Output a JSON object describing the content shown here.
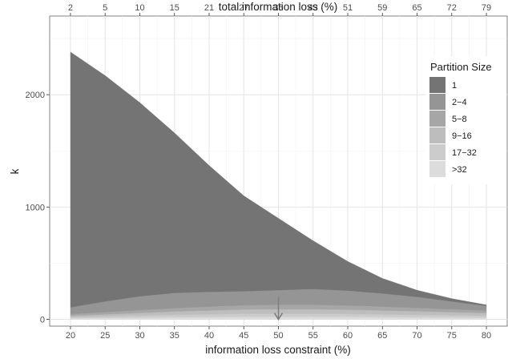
{
  "chart_data": {
    "type": "area",
    "stacked": true,
    "xlabel": "information loss constraint (%)",
    "ylabel": "k",
    "x2label": "total information loss (%)",
    "xlim": [
      17,
      83
    ],
    "ylim": [
      -60,
      2700
    ],
    "x_ticks": [
      20,
      25,
      30,
      35,
      40,
      45,
      50,
      55,
      60,
      65,
      70,
      75,
      80
    ],
    "x_tick_labels": [
      "20",
      "25",
      "30",
      "35",
      "40",
      "45",
      "50",
      "55",
      "60",
      "65",
      "70",
      "75",
      "80"
    ],
    "y_ticks": [
      0,
      1000,
      2000
    ],
    "y_tick_labels": [
      "0",
      "1000",
      "2000"
    ],
    "top_tick_labels": [
      "2",
      "5",
      "10",
      "15",
      "21",
      "27",
      "35",
      "43",
      "51",
      "59",
      "65",
      "72",
      "79"
    ],
    "grid": true,
    "legend": {
      "title": "Partition Size",
      "position": "top-right"
    },
    "x": [
      20,
      25,
      30,
      35,
      40,
      45,
      50,
      55,
      60,
      65,
      70,
      75,
      80
    ],
    "series": [
      {
        "name": ">32",
        "color": "#dcdcdc",
        "values": [
          10,
          12,
          15,
          18,
          20,
          22,
          22,
          22,
          22,
          20,
          18,
          16,
          14
        ]
      },
      {
        "name": "17-32",
        "color": "#cccccc",
        "values": [
          10,
          14,
          18,
          22,
          25,
          28,
          28,
          28,
          26,
          24,
          22,
          20,
          18
        ]
      },
      {
        "name": "9-16",
        "color": "#bdbdbd",
        "values": [
          12,
          18,
          24,
          30,
          34,
          38,
          40,
          40,
          38,
          35,
          32,
          28,
          24
        ]
      },
      {
        "name": "5-8",
        "color": "#a6a6a6",
        "values": [
          15,
          20,
          25,
          30,
          34,
          38,
          40,
          40,
          38,
          35,
          30,
          26,
          22
        ]
      },
      {
        "name": "2-4",
        "color": "#959595",
        "values": [
          60,
          96,
          123,
          135,
          132,
          124,
          130,
          140,
          132,
          116,
          98,
          70,
          42
        ]
      },
      {
        "name": "1",
        "color": "#747474",
        "values": [
          2273,
          2010,
          1725,
          1425,
          1125,
          850,
          640,
          430,
          260,
          135,
          60,
          25,
          10
        ]
      }
    ],
    "annotations": [
      {
        "type": "arrow",
        "x": 50,
        "y_from": 200,
        "y_to": 0,
        "color": "#7f7f7f"
      }
    ]
  }
}
